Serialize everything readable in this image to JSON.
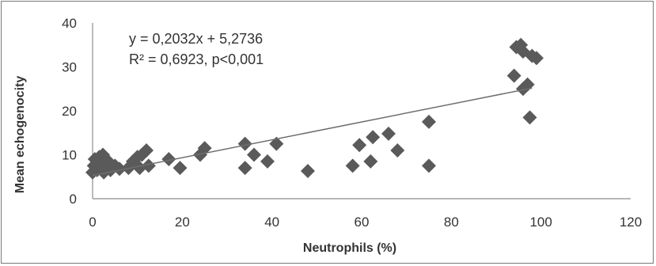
{
  "chart_data": {
    "type": "scatter",
    "title": "",
    "xlabel": "Neutrophils (%)",
    "ylabel": "Mean echogenocity",
    "xlim": [
      0,
      120
    ],
    "ylim": [
      0,
      40
    ],
    "xticks": [
      0,
      20,
      40,
      60,
      80,
      100,
      120
    ],
    "yticks": [
      0,
      10,
      20,
      30,
      40
    ],
    "grid": false,
    "legend": "none",
    "marker": "diamond",
    "marker_color": "#5a5a5a",
    "trendline": {
      "type": "linear",
      "slope": 0.2032,
      "intercept": 5.2736,
      "color": "#6e6e6e"
    },
    "annotations": [
      "y = 0,2032x + 5,2736",
      "R² = 0,6923, p<0,001"
    ],
    "points": [
      [
        0,
        6
      ],
      [
        0.3,
        7.5
      ],
      [
        0.5,
        9
      ],
      [
        0.8,
        8
      ],
      [
        1,
        6.5
      ],
      [
        1.2,
        7
      ],
      [
        1.5,
        9.5
      ],
      [
        1.8,
        6.8
      ],
      [
        2,
        8
      ],
      [
        2.3,
        10
      ],
      [
        2.5,
        6
      ],
      [
        3,
        7.5
      ],
      [
        3.5,
        8.5
      ],
      [
        4,
        6.5
      ],
      [
        5,
        7.5
      ],
      [
        6,
        6.8
      ],
      [
        8,
        7
      ],
      [
        9,
        8.5
      ],
      [
        10,
        9.5
      ],
      [
        10.5,
        7
      ],
      [
        11,
        10
      ],
      [
        12,
        11
      ],
      [
        12.5,
        7.5
      ],
      [
        17,
        9
      ],
      [
        19.5,
        7
      ],
      [
        24,
        10
      ],
      [
        25,
        11.5
      ],
      [
        34,
        12.5
      ],
      [
        34,
        7
      ],
      [
        36,
        10
      ],
      [
        39,
        8.5
      ],
      [
        41,
        12.5
      ],
      [
        48,
        6.3
      ],
      [
        58,
        7.5
      ],
      [
        59.5,
        12.2
      ],
      [
        62,
        8.5
      ],
      [
        62.5,
        14
      ],
      [
        66,
        14.8
      ],
      [
        68,
        11
      ],
      [
        75,
        17.5
      ],
      [
        75,
        7.5
      ],
      [
        94,
        28
      ],
      [
        94.5,
        34.5
      ],
      [
        95.5,
        35
      ],
      [
        96,
        33.5
      ],
      [
        96,
        25
      ],
      [
        97,
        26
      ],
      [
        97.5,
        18.5
      ],
      [
        98,
        32.5
      ],
      [
        99,
        32
      ]
    ]
  }
}
